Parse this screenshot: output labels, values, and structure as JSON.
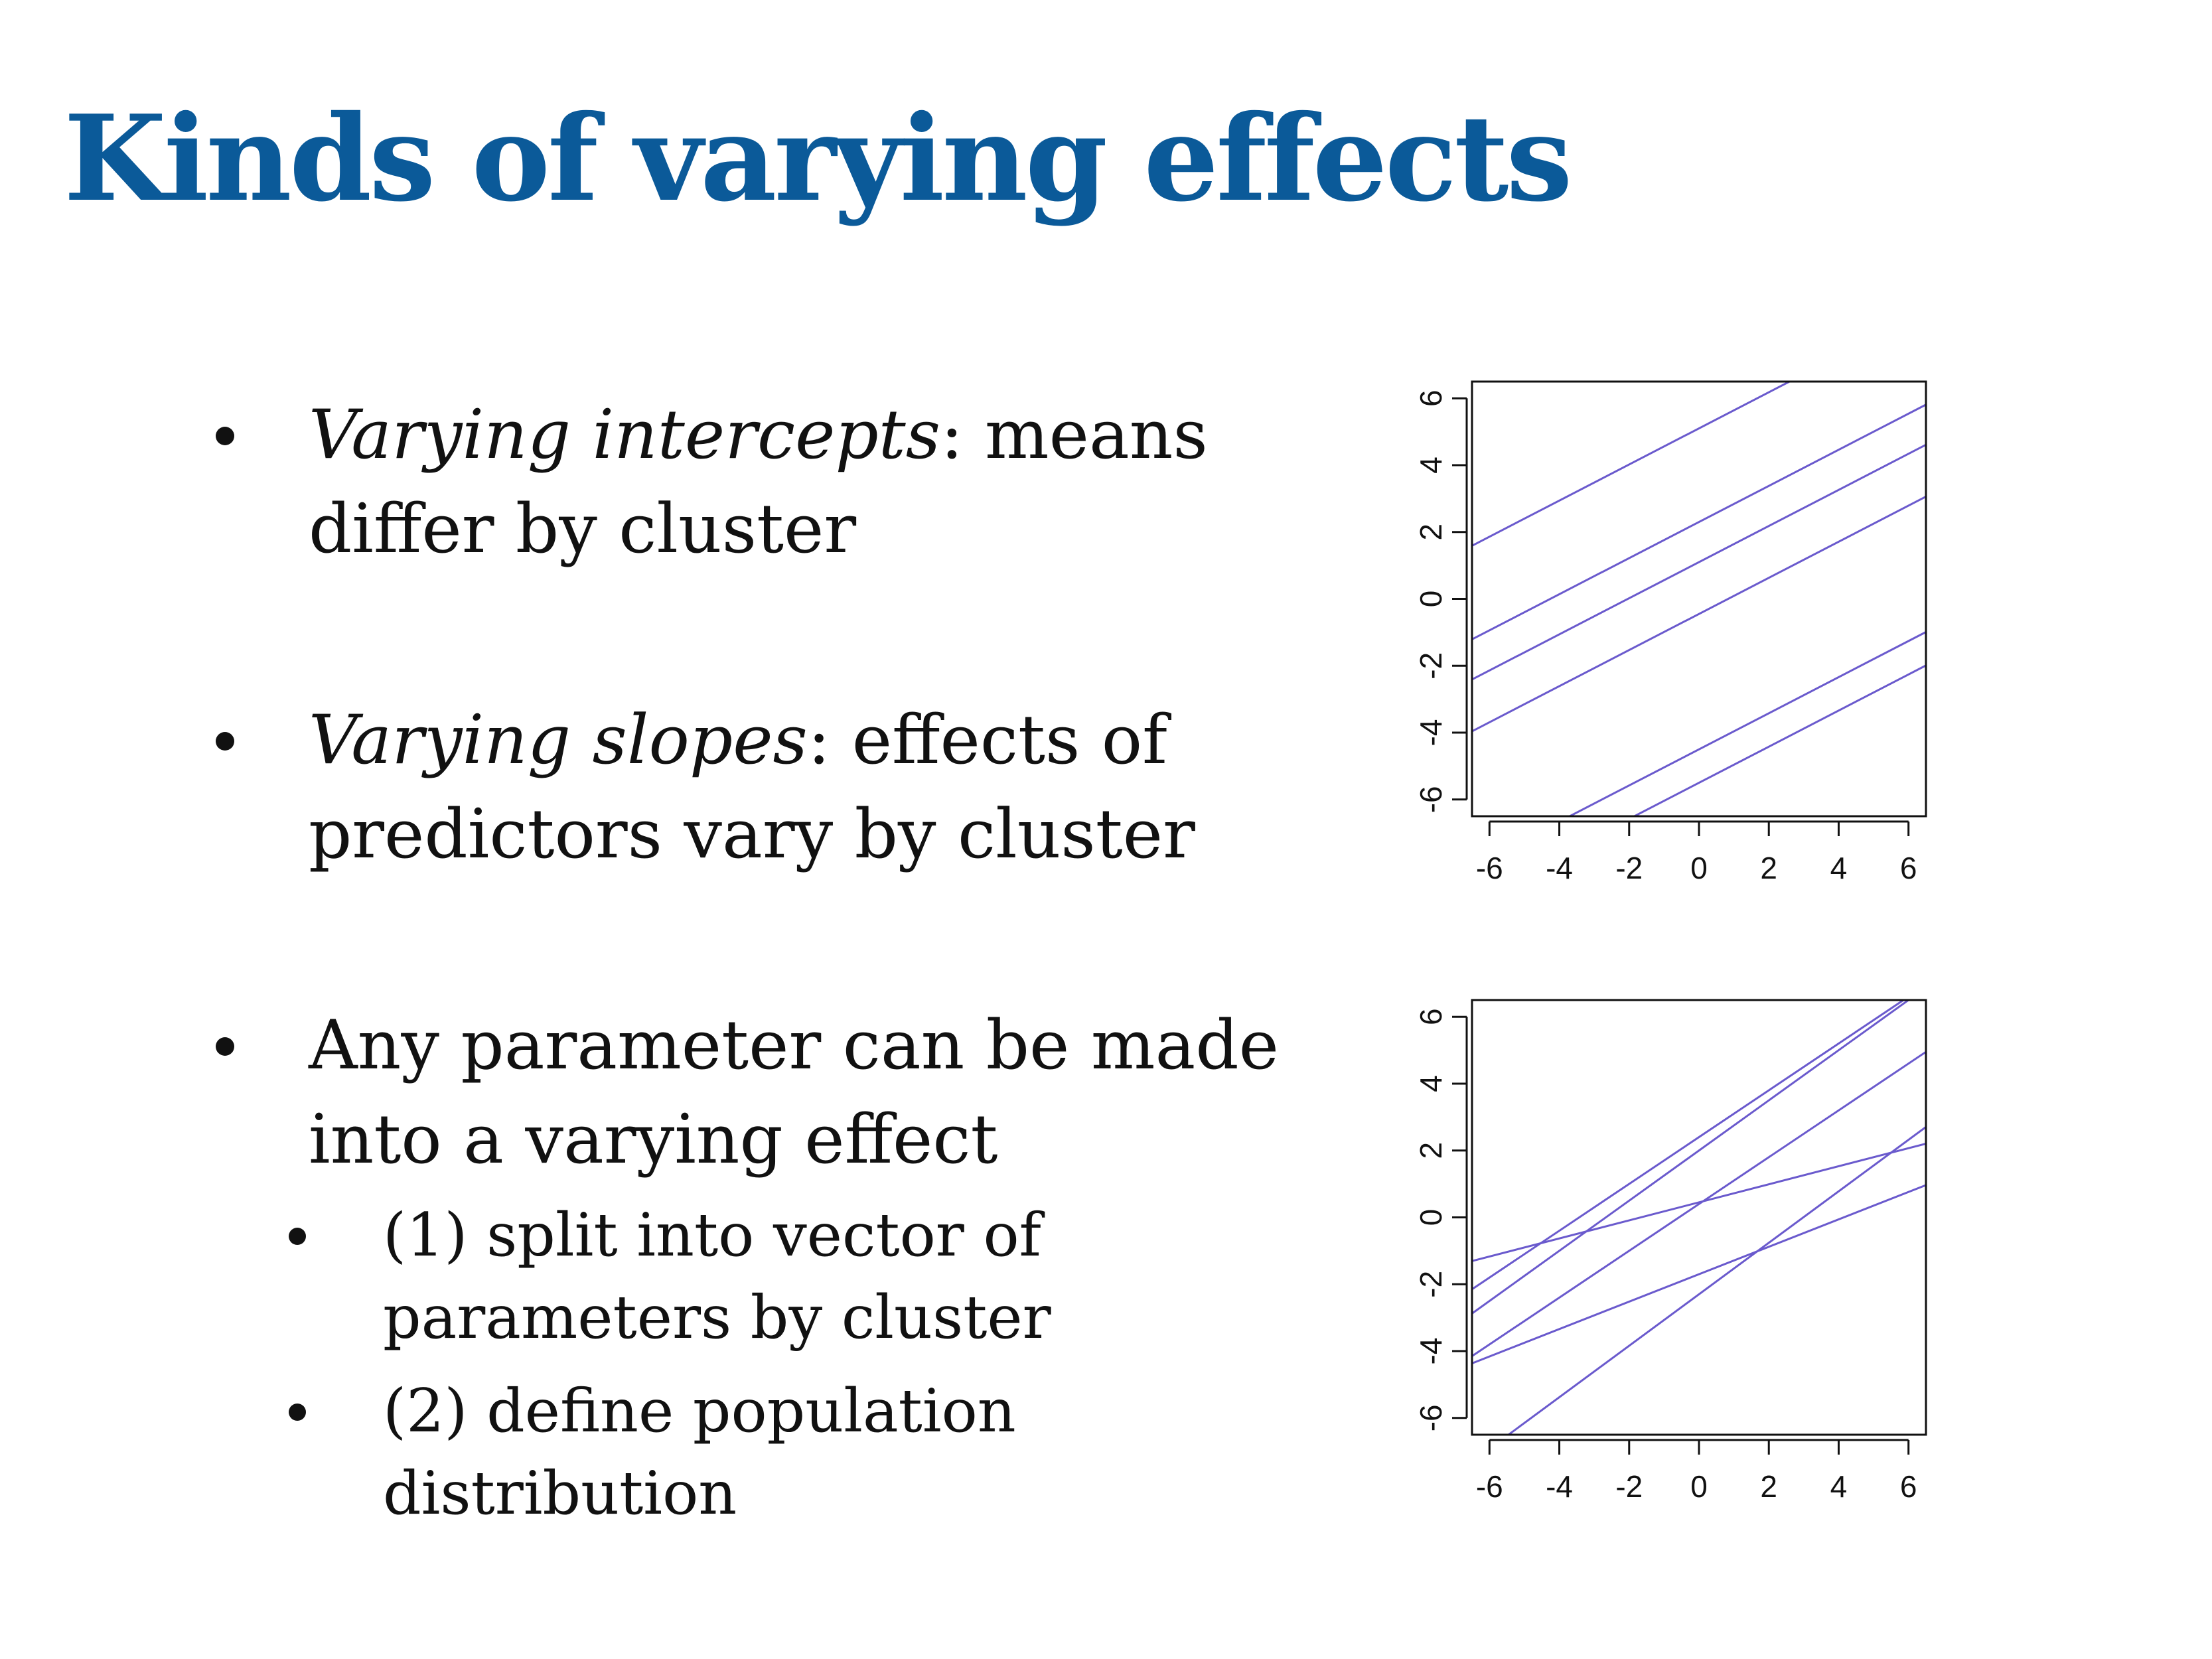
{
  "slide": {
    "title": "Kinds of varying effects",
    "bullets": [
      {
        "em": "Varying intercepts",
        "rest": ": means",
        "line2": "differ by cluster"
      },
      {
        "em": "Varying slopes",
        "rest": ": effects of",
        "line2": "predictors vary by cluster"
      },
      {
        "em": "",
        "rest": "Any parameter can be made",
        "line2": "into a varying effect"
      }
    ],
    "subbullets": [
      {
        "line1": "(1) split into vector of",
        "line2": "parameters by cluster"
      },
      {
        "line1": "(2) define population",
        "line2": "distribution"
      }
    ]
  },
  "colors": {
    "title": "#0b5a99",
    "lines": "#6a5acd",
    "text": "#111111"
  },
  "chart_data": [
    {
      "type": "line",
      "title": "",
      "xlabel": "",
      "ylabel": "",
      "xlim": [
        -6.5,
        6.5
      ],
      "ylim": [
        -6.5,
        6.5
      ],
      "xticks": [
        -6,
        -4,
        -2,
        0,
        2,
        4,
        6
      ],
      "yticks": [
        -6,
        -4,
        -2,
        0,
        2,
        4,
        6
      ],
      "grid": false,
      "series": [
        {
          "intercept": 5.1,
          "slope": 0.54
        },
        {
          "intercept": 2.3,
          "slope": 0.54
        },
        {
          "intercept": 1.1,
          "slope": 0.54
        },
        {
          "intercept": -0.45,
          "slope": 0.54
        },
        {
          "intercept": -4.5,
          "slope": 0.54
        },
        {
          "intercept": -5.5,
          "slope": 0.54
        }
      ]
    },
    {
      "type": "line",
      "title": "",
      "xlabel": "",
      "ylabel": "",
      "xlim": [
        -6.5,
        6.5
      ],
      "ylim": [
        -6.5,
        6.5
      ],
      "xticks": [
        -6,
        -4,
        -2,
        0,
        2,
        4,
        6
      ],
      "yticks": [
        -6,
        -4,
        -2,
        0,
        2,
        4,
        6
      ],
      "grid": false,
      "series": [
        {
          "intercept": 2.4,
          "slope": 0.7
        },
        {
          "intercept": 2.0,
          "slope": 0.75
        },
        {
          "intercept": 0.4,
          "slope": 0.7
        },
        {
          "intercept": 0.45,
          "slope": 0.27
        },
        {
          "intercept": -1.7,
          "slope": 0.41
        },
        {
          "intercept": -2.3,
          "slope": 0.77
        }
      ]
    }
  ]
}
